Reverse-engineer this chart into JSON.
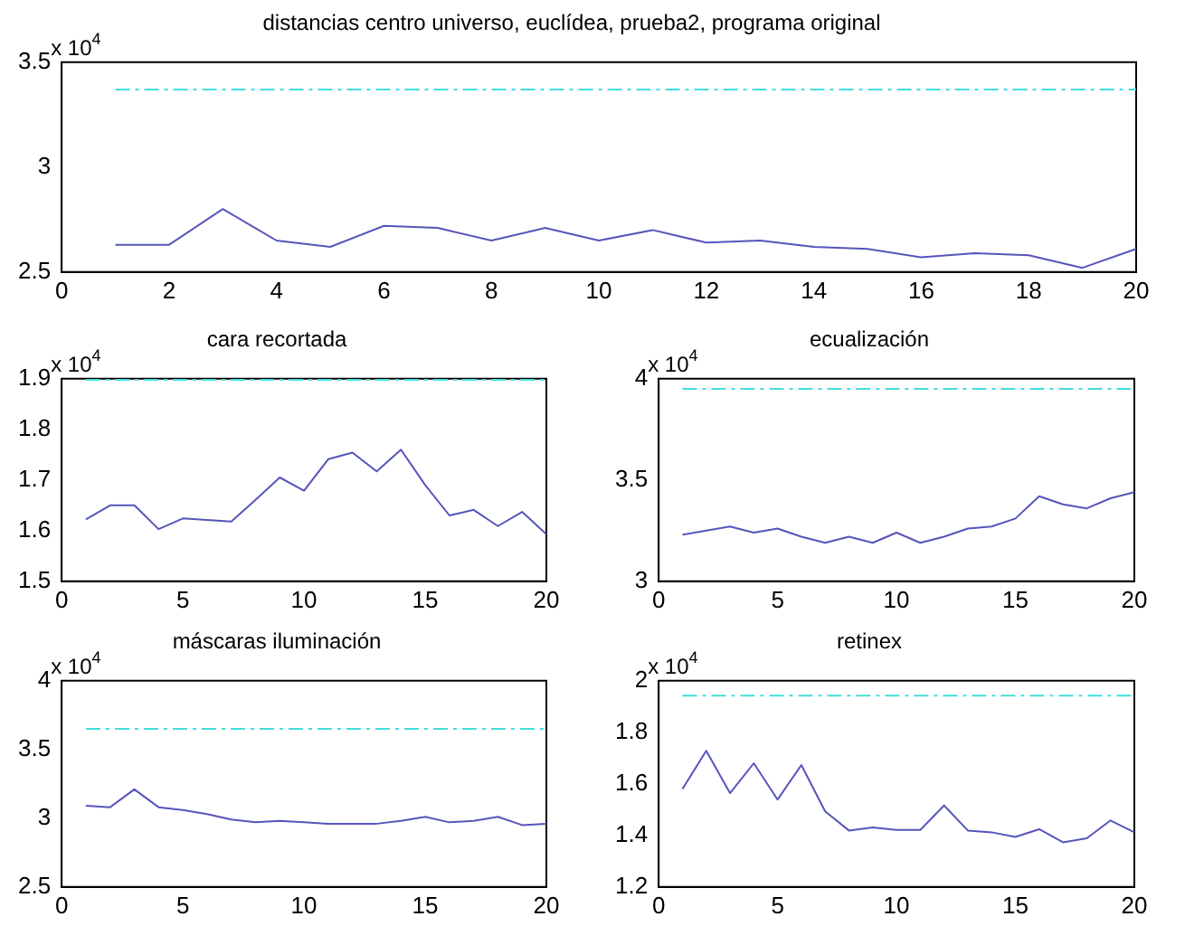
{
  "chart_data": [
    {
      "type": "line",
      "title": "distancias centro universo, euclídea, prueba2, programa original",
      "annotations": [
        "x 10$^{4}$"
      ],
      "x": [
        1,
        2,
        3,
        4,
        5,
        6,
        7,
        8,
        9,
        10,
        11,
        12,
        13,
        14,
        15,
        16,
        17,
        18,
        19,
        20
      ],
      "series": [
        {
          "color": "#5555bb",
          "values": [
            2.63,
            2.63,
            2.8,
            2.65,
            2.62,
            2.72,
            2.71,
            2.65,
            2.71,
            2.65,
            2.7,
            2.64,
            2.65,
            2.62,
            2.61,
            2.57,
            2.59,
            2.58,
            2.52,
            2.61
          ]
        },
        {
          "color": "#44dddd",
          "line_style": "dashed",
          "values": [
            3.37,
            3.37,
            3.37,
            3.37,
            3.37,
            3.37,
            3.37,
            3.37,
            3.37,
            3.37,
            3.37,
            3.37,
            3.37,
            3.37,
            3.37,
            3.37,
            3.37,
            3.37,
            3.37,
            3.37
          ]
        }
      ],
      "xlim": [
        0,
        20
      ],
      "xticks": [
        0,
        2,
        4,
        6,
        8,
        10,
        12,
        14,
        16,
        18,
        20
      ],
      "ylim": [
        2.5,
        3.5
      ],
      "yticks": [
        2.5,
        3,
        3.5
      ],
      "grid": false,
      "legend": false
    },
    {
      "type": "line",
      "title": "cara recortada",
      "annotations": [
        "x 10$^{4}$"
      ],
      "x": [
        1,
        2,
        3,
        4,
        5,
        6,
        7,
        8,
        9,
        10,
        11,
        12,
        13,
        14,
        15,
        16,
        17,
        18,
        19,
        20
      ],
      "series": [
        {
          "color": "#5555bb",
          "values": [
            1.622,
            1.65,
            1.65,
            1.603,
            1.624,
            1.621,
            1.618,
            1.661,
            1.705,
            1.679,
            1.741,
            1.754,
            1.717,
            1.76,
            1.69,
            1.63,
            1.641,
            1.609,
            1.637,
            1.593
          ]
        },
        {
          "color": "#44dddd",
          "line_style": "dashed",
          "values": [
            1.898,
            1.898,
            1.898,
            1.898,
            1.898,
            1.898,
            1.898,
            1.898,
            1.898,
            1.898,
            1.898,
            1.898,
            1.898,
            1.898,
            1.898,
            1.898,
            1.898,
            1.898,
            1.898,
            1.898
          ]
        }
      ],
      "xlim": [
        0,
        20
      ],
      "xticks": [
        0,
        5,
        10,
        15,
        20
      ],
      "ylim": [
        1.5,
        1.9
      ],
      "yticks": [
        1.5,
        1.6,
        1.7,
        1.8,
        1.9
      ],
      "grid": false,
      "legend": false
    },
    {
      "type": "line",
      "title": "ecualización",
      "annotations": [
        "x 10$^{4}$"
      ],
      "x": [
        1,
        2,
        3,
        4,
        5,
        6,
        7,
        8,
        9,
        10,
        11,
        12,
        13,
        14,
        15,
        16,
        17,
        18,
        19,
        20
      ],
      "series": [
        {
          "color": "#5555bb",
          "values": [
            3.23,
            3.25,
            3.27,
            3.24,
            3.26,
            3.22,
            3.19,
            3.22,
            3.19,
            3.24,
            3.19,
            3.22,
            3.26,
            3.27,
            3.31,
            3.42,
            3.38,
            3.36,
            3.41,
            3.44
          ]
        },
        {
          "color": "#44dddd",
          "line_style": "dashed",
          "values": [
            3.95,
            3.95,
            3.95,
            3.95,
            3.95,
            3.95,
            3.95,
            3.95,
            3.95,
            3.95,
            3.95,
            3.95,
            3.95,
            3.95,
            3.95,
            3.95,
            3.95,
            3.95,
            3.95,
            3.95
          ]
        }
      ],
      "xlim": [
        0,
        20
      ],
      "xticks": [
        0,
        5,
        10,
        15,
        20
      ],
      "ylim": [
        3,
        4
      ],
      "yticks": [
        3,
        3.5,
        4
      ],
      "grid": false,
      "legend": false
    },
    {
      "type": "line",
      "title": "máscaras iluminación",
      "annotations": [
        "x 10$^{4}$"
      ],
      "x": [
        1,
        2,
        3,
        4,
        5,
        6,
        7,
        8,
        9,
        10,
        11,
        12,
        13,
        14,
        15,
        16,
        17,
        18,
        19,
        20
      ],
      "series": [
        {
          "color": "#5555bb",
          "values": [
            3.09,
            3.08,
            3.21,
            3.08,
            3.06,
            3.03,
            2.99,
            2.97,
            2.98,
            2.97,
            2.96,
            2.96,
            2.96,
            2.98,
            3.01,
            2.97,
            2.98,
            3.01,
            2.95,
            2.96
          ]
        },
        {
          "color": "#44dddd",
          "line_style": "dashed",
          "values": [
            3.65,
            3.65,
            3.65,
            3.65,
            3.65,
            3.65,
            3.65,
            3.65,
            3.65,
            3.65,
            3.65,
            3.65,
            3.65,
            3.65,
            3.65,
            3.65,
            3.65,
            3.65,
            3.65,
            3.65
          ]
        }
      ],
      "xlim": [
        0,
        20
      ],
      "xticks": [
        0,
        5,
        10,
        15,
        20
      ],
      "ylim": [
        2.5,
        4
      ],
      "yticks": [
        2.5,
        3,
        3.5,
        4
      ],
      "grid": false,
      "legend": false
    },
    {
      "type": "line",
      "title": "retinex",
      "annotations": [
        "x 10$^{4}$"
      ],
      "x": [
        1,
        2,
        3,
        4,
        5,
        6,
        7,
        8,
        9,
        10,
        11,
        12,
        13,
        14,
        15,
        16,
        17,
        18,
        19,
        20
      ],
      "series": [
        {
          "color": "#5555bb",
          "values": [
            1.58,
            1.728,
            1.564,
            1.68,
            1.539,
            1.673,
            1.493,
            1.419,
            1.431,
            1.421,
            1.421,
            1.516,
            1.419,
            1.412,
            1.394,
            1.424,
            1.373,
            1.389,
            1.458,
            1.412
          ]
        },
        {
          "color": "#44dddd",
          "line_style": "dashed",
          "values": [
            1.942,
            1.942,
            1.942,
            1.942,
            1.942,
            1.942,
            1.942,
            1.942,
            1.942,
            1.942,
            1.942,
            1.942,
            1.942,
            1.942,
            1.942,
            1.942,
            1.942,
            1.942,
            1.942,
            1.942
          ]
        }
      ],
      "xlim": [
        0,
        20
      ],
      "xticks": [
        0,
        5,
        10,
        15,
        20
      ],
      "ylim": [
        1.2,
        2
      ],
      "yticks": [
        1.2,
        1.4,
        1.6,
        1.8,
        2
      ],
      "grid": false,
      "legend": false
    }
  ]
}
